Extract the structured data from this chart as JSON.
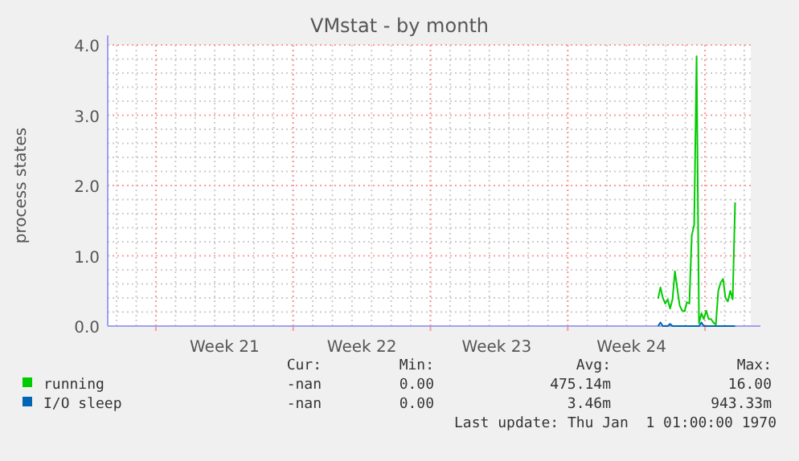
{
  "chart_data": {
    "type": "line",
    "title": "VMstat - by month",
    "ylabel": "process states",
    "categories": [
      null,
      null,
      null,
      null,
      null,
      null,
      null,
      null,
      null,
      null,
      null,
      null,
      null,
      null,
      null,
      null,
      null,
      null,
      null,
      null,
      null,
      null,
      null,
      null,
      null,
      null,
      null,
      null,
      null,
      null,
      null,
      null,
      null,
      null,
      null,
      null,
      null,
      null,
      null,
      null,
      null,
      null,
      null,
      null,
      null,
      null,
      null,
      null,
      "Week 21",
      null,
      null,
      null,
      null,
      null,
      null,
      null,
      null,
      null,
      null,
      null,
      null,
      null,
      null,
      null,
      null,
      null,
      null,
      null,
      null,
      null,
      null,
      null,
      null,
      null,
      null,
      null,
      null,
      null,
      null,
      null,
      null,
      null,
      null,
      null,
      null,
      null,
      null,
      null,
      null,
      null,
      null,
      null,
      null,
      null,
      null,
      null,
      null,
      null,
      null,
      null,
      null,
      null,
      null,
      null,
      null,
      "Week 22",
      null,
      null,
      null,
      null,
      null,
      null,
      null,
      null,
      null,
      null,
      null,
      null,
      null,
      null,
      null,
      null,
      null,
      null,
      null,
      null,
      null,
      null,
      null,
      null,
      null,
      null,
      null,
      null,
      null,
      null,
      null,
      null,
      null,
      null,
      null,
      null,
      null,
      null,
      null,
      null,
      null,
      null,
      null,
      null,
      null,
      null,
      null,
      null,
      null,
      null,
      null,
      null,
      null,
      null,
      null,
      "Week 23",
      null,
      null,
      null,
      null,
      null,
      null,
      null,
      null,
      null,
      null,
      null,
      null,
      null,
      null,
      null,
      null,
      null,
      null,
      null,
      null,
      null,
      null,
      null,
      null,
      null,
      null,
      null,
      null,
      null,
      null,
      null,
      null,
      null,
      null,
      null,
      null,
      null,
      null,
      null,
      null,
      null,
      null,
      null,
      null,
      null,
      null,
      null,
      null,
      null,
      null,
      null,
      null,
      null,
      null,
      null,
      "Week 24",
      null,
      null,
      null,
      null,
      null,
      null,
      null,
      null,
      null,
      null,
      null,
      null,
      null,
      null,
      null,
      null,
      null,
      null,
      null,
      null,
      null,
      null,
      null,
      null,
      null,
      null,
      null,
      null,
      null,
      null,
      null,
      null,
      null,
      null,
      null,
      null,
      null,
      null,
      null,
      null,
      null,
      null,
      null,
      null,
      null,
      null,
      null,
      null,
      null
    ],
    "ylim": [
      0,
      4
    ],
    "yticks": [
      {
        "value": 0,
        "label": "0.0"
      },
      {
        "value": 0.2,
        "label": null
      },
      {
        "value": 0.4,
        "label": null
      },
      {
        "value": 0.6,
        "label": null
      },
      {
        "value": 0.8,
        "label": null
      },
      {
        "value": 1,
        "label": "1.0"
      },
      {
        "value": 1.2,
        "label": null
      },
      {
        "value": 1.4,
        "label": null
      },
      {
        "value": 1.6,
        "label": null
      },
      {
        "value": 1.8,
        "label": null
      },
      {
        "value": 2,
        "label": "2.0"
      },
      {
        "value": 2.2,
        "label": null
      },
      {
        "value": 2.4,
        "label": null
      },
      {
        "value": 2.6,
        "label": null
      },
      {
        "value": 2.8,
        "label": null
      },
      {
        "value": 3,
        "label": "3.0"
      },
      {
        "value": 3.2,
        "label": null
      },
      {
        "value": 3.4,
        "label": null
      },
      {
        "value": 3.6,
        "label": null
      },
      {
        "value": 3.8,
        "label": null
      },
      {
        "value": 4,
        "label": "4.0"
      }
    ],
    "grid": true,
    "legend": "bottom",
    "series": [
      {
        "name": "running",
        "color": "#00cc00",
        "values": [
          null,
          null,
          null,
          null,
          null,
          null,
          null,
          null,
          null,
          null,
          null,
          null,
          null,
          null,
          null,
          null,
          null,
          null,
          null,
          null,
          null,
          null,
          null,
          null,
          null,
          null,
          null,
          null,
          null,
          null,
          null,
          null,
          null,
          null,
          null,
          null,
          null,
          null,
          null,
          null,
          null,
          null,
          null,
          null,
          null,
          null,
          null,
          null,
          null,
          null,
          null,
          null,
          null,
          null,
          null,
          null,
          null,
          null,
          null,
          null,
          null,
          null,
          null,
          null,
          null,
          null,
          null,
          null,
          null,
          null,
          null,
          null,
          null,
          null,
          null,
          null,
          null,
          null,
          null,
          null,
          null,
          null,
          null,
          null,
          null,
          null,
          null,
          null,
          null,
          null,
          null,
          null,
          null,
          null,
          null,
          null,
          null,
          null,
          null,
          null,
          null,
          null,
          null,
          null,
          null,
          null,
          null,
          null,
          null,
          null,
          null,
          null,
          null,
          null,
          null,
          null,
          null,
          null,
          null,
          null,
          null,
          null,
          null,
          null,
          null,
          null,
          null,
          null,
          null,
          null,
          null,
          null,
          null,
          null,
          null,
          null,
          null,
          null,
          null,
          null,
          null,
          null,
          null,
          null,
          null,
          null,
          null,
          null,
          null,
          null,
          null,
          null,
          null,
          null,
          null,
          null,
          null,
          null,
          null,
          null,
          null,
          null,
          null,
          null,
          null,
          null,
          null,
          null,
          null,
          null,
          null,
          null,
          null,
          null,
          null,
          null,
          null,
          null,
          null,
          null,
          null,
          null,
          null,
          null,
          null,
          null,
          null,
          null,
          null,
          null,
          null,
          null,
          null,
          null,
          null,
          null,
          null,
          null,
          null,
          null,
          null,
          null,
          null,
          null,
          null,
          null,
          null,
          null,
          null,
          null,
          null,
          null,
          null,
          null,
          null,
          null,
          null,
          null,
          null,
          null,
          null,
          null,
          null,
          null,
          null,
          null,
          null,
          null,
          0.39,
          0.55,
          0.4,
          0.32,
          0.38,
          0.25,
          0.38,
          0.78,
          0.53,
          0.29,
          0.22,
          0.21,
          0.34,
          0.32,
          1.29,
          1.44,
          3.84,
          0.04,
          0.18,
          0.1,
          0.22,
          0.1,
          0.1,
          0.05,
          0.02,
          0.5,
          0.62,
          0.67,
          0.4,
          0.35,
          0.5,
          0.38,
          1.76,
          null,
          null,
          null,
          null,
          null,
          null
        ]
      },
      {
        "name": "I/O sleep",
        "color": "#0066b3",
        "values": [
          null,
          null,
          null,
          null,
          null,
          null,
          null,
          null,
          null,
          null,
          null,
          null,
          null,
          null,
          null,
          null,
          null,
          null,
          null,
          null,
          null,
          null,
          null,
          null,
          null,
          null,
          null,
          null,
          null,
          null,
          null,
          null,
          null,
          null,
          null,
          null,
          null,
          null,
          null,
          null,
          null,
          null,
          null,
          null,
          null,
          null,
          null,
          null,
          null,
          null,
          null,
          null,
          null,
          null,
          null,
          null,
          null,
          null,
          null,
          null,
          null,
          null,
          null,
          null,
          null,
          null,
          null,
          null,
          null,
          null,
          null,
          null,
          null,
          null,
          null,
          null,
          null,
          null,
          null,
          null,
          null,
          null,
          null,
          null,
          null,
          null,
          null,
          null,
          null,
          null,
          null,
          null,
          null,
          null,
          null,
          null,
          null,
          null,
          null,
          null,
          null,
          null,
          null,
          null,
          null,
          null,
          null,
          null,
          null,
          null,
          null,
          null,
          null,
          null,
          null,
          null,
          null,
          null,
          null,
          null,
          null,
          null,
          null,
          null,
          null,
          null,
          null,
          null,
          null,
          null,
          null,
          null,
          null,
          null,
          null,
          null,
          null,
          null,
          null,
          null,
          null,
          null,
          null,
          null,
          null,
          null,
          null,
          null,
          null,
          null,
          null,
          null,
          null,
          null,
          null,
          null,
          null,
          null,
          null,
          null,
          null,
          null,
          null,
          null,
          null,
          null,
          null,
          null,
          null,
          null,
          null,
          null,
          null,
          null,
          null,
          null,
          null,
          null,
          null,
          null,
          null,
          null,
          null,
          null,
          null,
          null,
          null,
          null,
          null,
          null,
          null,
          null,
          null,
          null,
          null,
          null,
          null,
          null,
          null,
          null,
          null,
          null,
          null,
          null,
          null,
          null,
          null,
          null,
          null,
          null,
          null,
          null,
          null,
          null,
          null,
          null,
          null,
          null,
          null,
          null,
          null,
          null,
          null,
          null,
          null,
          null,
          null,
          null,
          0,
          0.05,
          0,
          0,
          0,
          0.03,
          0,
          0,
          0,
          0,
          0,
          0,
          0,
          0,
          0,
          0,
          0,
          0,
          0.05,
          0,
          0,
          0,
          0,
          0,
          0,
          0,
          0,
          0,
          0,
          0,
          0,
          0,
          0,
          null,
          null,
          null,
          null,
          null,
          null
        ]
      }
    ],
    "annotations": [
      "Cur:",
      "Min:",
      "Avg:",
      "Max:",
      "-nan",
      "0.00",
      "475.14m",
      "16.00",
      "-nan",
      "0.00",
      "3.46m",
      "943.33m",
      "Last update: Thu Jan  1 01:00:00 1970"
    ]
  }
}
